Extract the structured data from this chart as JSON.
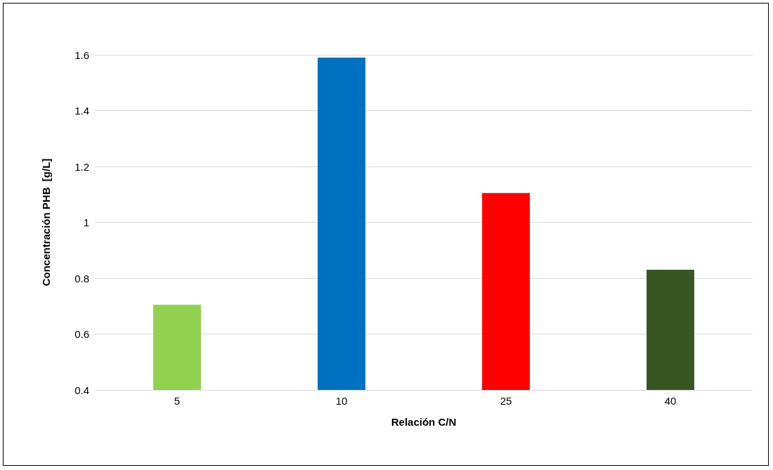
{
  "chart_data": {
    "type": "bar",
    "xlabel": "Relación C/N",
    "ylabel": "Concentración PHB  [g/L]",
    "categories": [
      "5",
      "10",
      "25",
      "40"
    ],
    "values": [
      0.705,
      1.59,
      1.105,
      0.83
    ],
    "colors": [
      "#92d050",
      "#0070c0",
      "#ff0000",
      "#375623"
    ],
    "ylim": [
      0.4,
      1.6
    ],
    "yticks": [
      0.4,
      0.6,
      0.8,
      1,
      1.2,
      1.4,
      1.6
    ],
    "grid": "y"
  }
}
